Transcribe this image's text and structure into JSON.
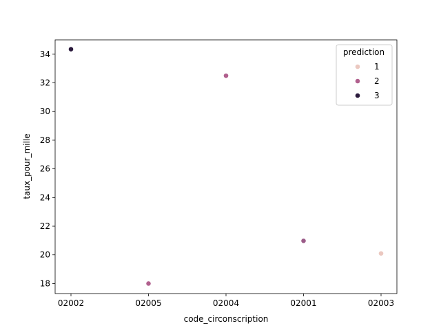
{
  "chart_data": {
    "type": "scatter",
    "title": "",
    "xlabel": "code_circonscription",
    "ylabel": "taux_pour_mille",
    "x_categories": [
      "02002",
      "02005",
      "02004",
      "02001",
      "02003"
    ],
    "ylim": [
      17.3,
      35.0
    ],
    "yticks": [
      18,
      20,
      22,
      24,
      26,
      28,
      30,
      32,
      34
    ],
    "grid": false,
    "legend": {
      "title": "prediction",
      "placement": "top-right",
      "entries": [
        {
          "label": "1",
          "color": "#ebc8c0"
        },
        {
          "label": "2",
          "color": "#b1608e"
        },
        {
          "label": "3",
          "color": "#2a1a3c"
        }
      ]
    },
    "points": [
      {
        "x": "02002",
        "y": 34.35,
        "prediction": "3",
        "color": "#2a1a3c"
      },
      {
        "x": "02005",
        "y": 18.0,
        "prediction": "2",
        "color": "#b1608e"
      },
      {
        "x": "02004",
        "y": 32.5,
        "prediction": "2",
        "color": "#b1608e"
      },
      {
        "x": "02001",
        "y": 20.98,
        "prediction": "2",
        "color": "#9b5b88"
      },
      {
        "x": "02003",
        "y": 20.1,
        "prediction": "1",
        "color": "#ebc8c0"
      }
    ]
  }
}
